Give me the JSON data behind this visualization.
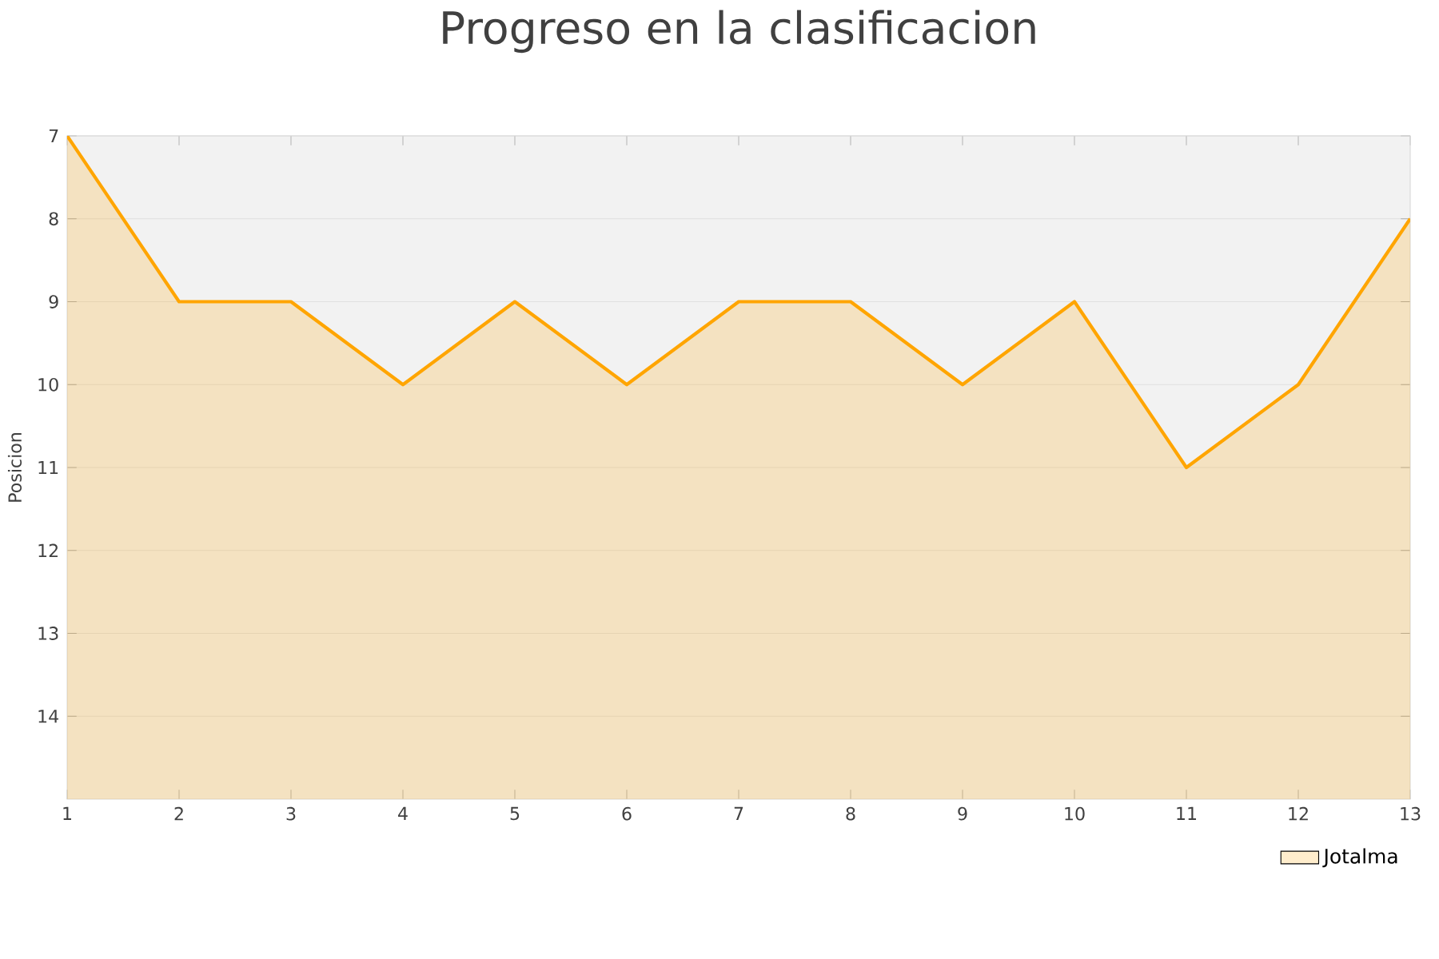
{
  "chart_data": {
    "type": "area",
    "title": "Progreso en la clasificacion",
    "ylabel": "Posicion",
    "x": [
      1,
      2,
      3,
      4,
      5,
      6,
      7,
      8,
      9,
      10,
      11,
      12,
      13
    ],
    "series": [
      {
        "name": "Jotalma",
        "color": "#ffa500",
        "values": [
          7,
          9,
          9,
          10,
          9,
          10,
          9,
          9,
          10,
          9,
          11,
          10,
          8
        ]
      }
    ],
    "xlim": [
      1,
      13
    ],
    "xticks": [
      1,
      2,
      3,
      4,
      5,
      6,
      7,
      8,
      9,
      10,
      11,
      12,
      13
    ],
    "ylim": [
      15,
      7
    ],
    "yticks": [
      7,
      8,
      9,
      10,
      11,
      12,
      13,
      14
    ],
    "grid": "y",
    "legend": "bottom right",
    "marker": "none",
    "line_style": "solid"
  }
}
